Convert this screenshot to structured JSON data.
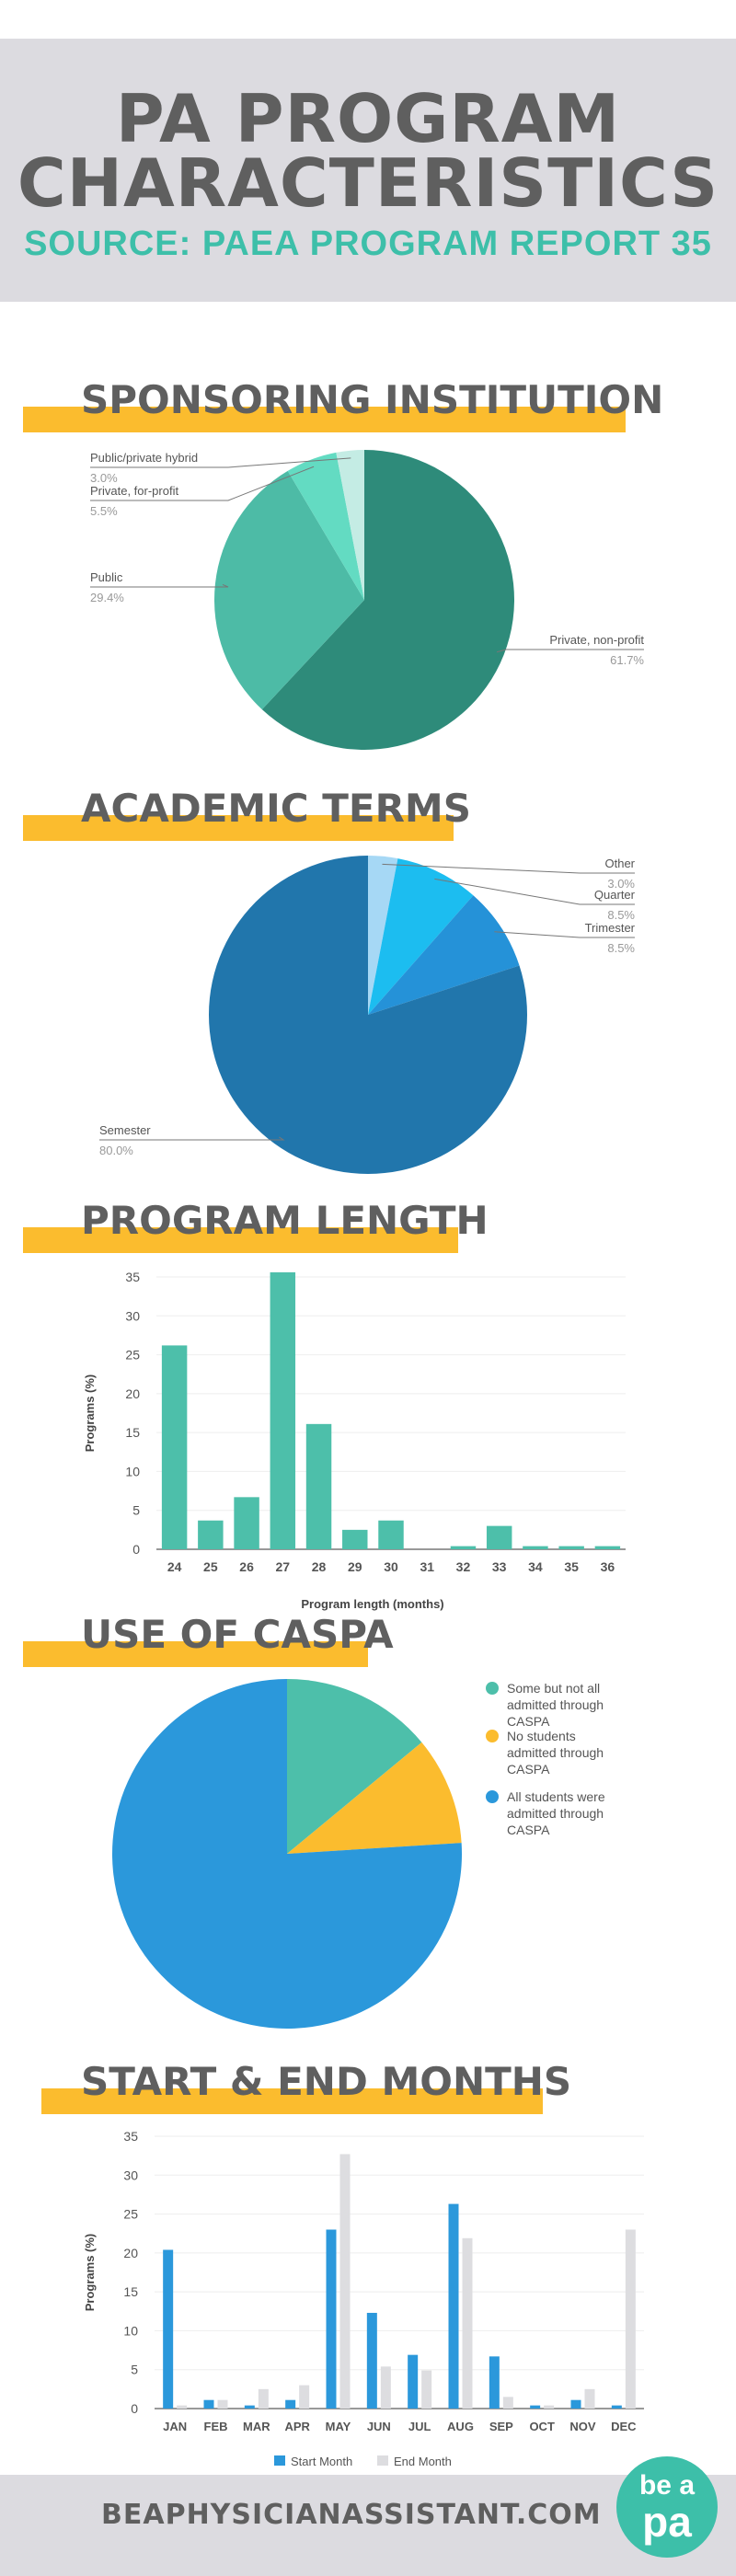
{
  "header": {
    "title_line1": "PA PROGRAM",
    "title_line2": "CHARACTERISTICS",
    "source": "SOURCE: PAEA PROGRAM REPORT 35"
  },
  "sections": {
    "sponsoring": "SPONSORING INSTITUTION",
    "academic": "ACADEMIC TERMS",
    "length": "PROGRAM LENGTH",
    "caspa": "USE OF CASPA",
    "months": "START & END MONTHS"
  },
  "footer": {
    "url": "BEAPHYSICIANASSISTANT.COM",
    "logo_top": "be a",
    "logo_bottom": "pa"
  },
  "chart_data": [
    {
      "type": "pie",
      "slices": [
        {
          "label": "Private, non-profit",
          "pct": "61.7%",
          "value": 61.7,
          "color": "#2e8b7a"
        },
        {
          "label": "Public",
          "pct": "29.4%",
          "value": 29.4,
          "color": "#4dbba6"
        },
        {
          "label": "Private, for-profit",
          "pct": "5.5%",
          "value": 5.5,
          "color": "#63dbc2"
        },
        {
          "label": "Public/private hybrid",
          "pct": "3.0%",
          "value": 3.0,
          "color": "#c4ece4"
        }
      ]
    },
    {
      "type": "pie",
      "slices": [
        {
          "label": "Other",
          "pct": "3.0%",
          "value": 3.0,
          "color": "#a6d8f5"
        },
        {
          "label": "Quarter",
          "pct": "8.5%",
          "value": 8.5,
          "color": "#1cbdf0"
        },
        {
          "label": "Trimester",
          "pct": "8.5%",
          "value": 8.5,
          "color": "#2592d8"
        },
        {
          "label": "Semester",
          "pct": "80.0%",
          "value": 80.0,
          "color": "#2176ac"
        }
      ]
    },
    {
      "type": "bar",
      "categories": [
        "24",
        "25",
        "26",
        "27",
        "28",
        "29",
        "30",
        "31",
        "32",
        "33",
        "34",
        "35",
        "36"
      ],
      "values": [
        26.2,
        3.7,
        6.7,
        35.6,
        16.1,
        2.5,
        3.7,
        0,
        0.4,
        3.0,
        0.4,
        0.4,
        0.4
      ],
      "xlabel": "Program length (months)",
      "ylabel": "Programs (%)",
      "ylim": [
        0,
        35
      ],
      "yticks": [
        0,
        5,
        10,
        15,
        20,
        25,
        30,
        35
      ],
      "color": "#4dbfaa"
    },
    {
      "type": "pie",
      "slices": [
        {
          "label": "Some but not all admitted through CASPA",
          "value": 14,
          "color": "#4dbfaa"
        },
        {
          "label": "No students admitted through CASPA",
          "value": 10,
          "color": "#fbbc2e"
        },
        {
          "label": "All students were admitted through CASPA",
          "value": 76,
          "color": "#2b98db"
        }
      ],
      "legend": "right"
    },
    {
      "type": "bar",
      "categories": [
        "JAN",
        "FEB",
        "MAR",
        "APR",
        "MAY",
        "JUN",
        "JUL",
        "AUG",
        "SEP",
        "OCT",
        "NOV",
        "DEC"
      ],
      "series": [
        {
          "name": "Start Month",
          "values": [
            20.4,
            1.1,
            0.4,
            1.1,
            23.0,
            12.3,
            6.9,
            26.3,
            6.7,
            0.4,
            1.1,
            0.4
          ],
          "color": "#2b98db"
        },
        {
          "name": "End Month",
          "values": [
            0.4,
            1.1,
            2.5,
            3.0,
            32.7,
            5.4,
            4.9,
            21.9,
            1.5,
            0.4,
            2.5,
            23.0
          ],
          "color": "#dddde0"
        }
      ],
      "ylabel": "Programs (%)",
      "ylim": [
        0,
        35
      ],
      "yticks": [
        0,
        5,
        10,
        15,
        20,
        25,
        30,
        35
      ],
      "legend": "bottom"
    }
  ]
}
